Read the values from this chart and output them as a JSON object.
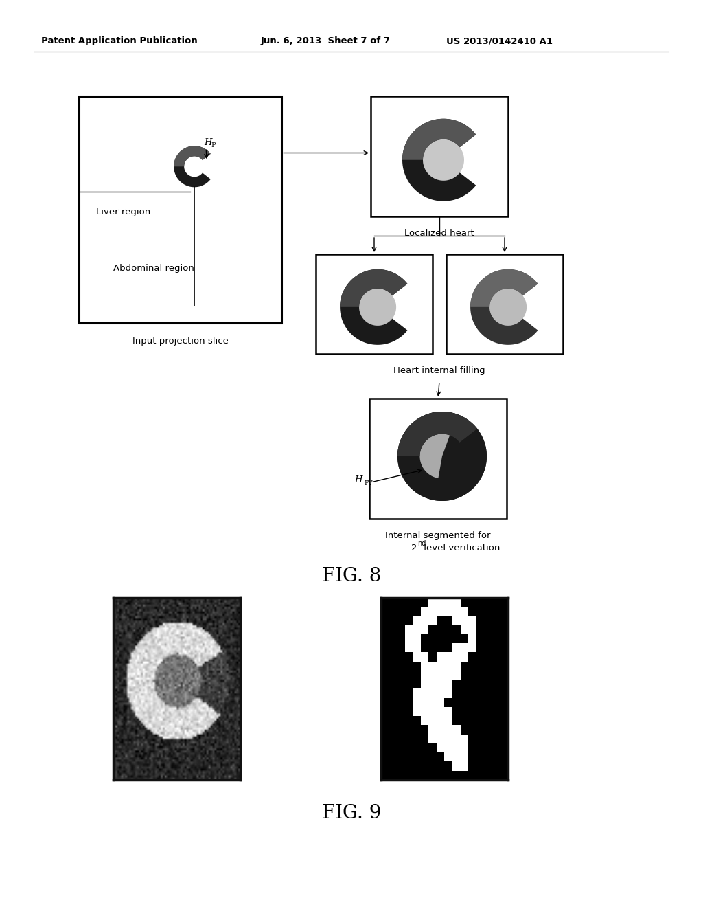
{
  "title_left": "Patent Application Publication",
  "title_center": "Jun. 6, 2013  Sheet 7 of 7",
  "title_right": "US 2013/0142410 A1",
  "fig8_label": "FIG. 8",
  "fig9_label": "FIG. 9",
  "label_input": "Input projection slice",
  "label_liver": "Liver region",
  "label_abdominal": "Abdominal region",
  "label_localized": "Localized heart",
  "label_filling": "Heart internal filling",
  "label_segmented_line1": "Internal segmented for",
  "label_segmented_line2": "2",
  "label_segmented_line3": "nd",
  "label_segmented_line4": " level verification",
  "label_hp": "H",
  "label_hp_sub": "P",
  "label_hpv": "H",
  "label_hpv_sub": "PV",
  "bg_color": "#ffffff"
}
